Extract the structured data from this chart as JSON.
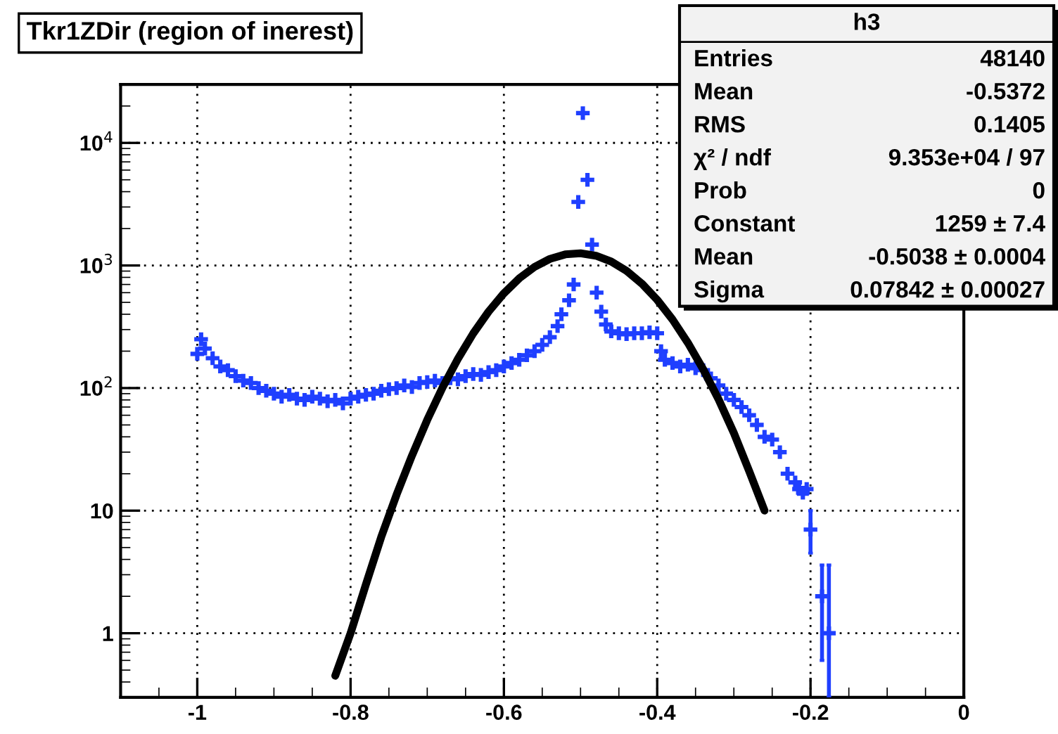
{
  "chart_data": {
    "type": "scatter",
    "title": "Tkr1ZDir (region of inerest)",
    "xlim": [
      -1.1,
      0
    ],
    "xticks": [
      -1,
      -0.8,
      -0.6,
      -0.4,
      -0.2,
      0
    ],
    "ylim": [
      0.3,
      30000
    ],
    "yticks": [
      1,
      10,
      {
        "value": 100,
        "label": "10$^{2}$"
      },
      {
        "value": 1000,
        "label": "10$^{3}$"
      },
      {
        "value": 10000,
        "label": "10$^{4}$"
      }
    ],
    "log": "y",
    "grid": true,
    "series": [
      {
        "color": "#1f3fff",
        "marker": "cross",
        "x": [
          -1.0,
          -0.995,
          -0.99,
          -0.98,
          -0.97,
          -0.96,
          -0.95,
          -0.94,
          -0.93,
          -0.92,
          -0.91,
          -0.9,
          -0.89,
          -0.88,
          -0.87,
          -0.86,
          -0.85,
          -0.84,
          -0.83,
          -0.82,
          -0.81,
          -0.8,
          -0.79,
          -0.78,
          -0.77,
          -0.76,
          -0.75,
          -0.74,
          -0.73,
          -0.72,
          -0.71,
          -0.7,
          -0.69,
          -0.68,
          -0.67,
          -0.66,
          -0.65,
          -0.64,
          -0.63,
          -0.62,
          -0.61,
          -0.6,
          -0.59,
          -0.58,
          -0.57,
          -0.56,
          -0.55,
          -0.54,
          -0.53,
          -0.525,
          -0.515,
          -0.509,
          -0.503,
          -0.497,
          -0.491,
          -0.485,
          -0.479,
          -0.473,
          -0.467,
          -0.46,
          -0.45,
          -0.44,
          -0.43,
          -0.42,
          -0.41,
          -0.4,
          -0.395,
          -0.39,
          -0.38,
          -0.37,
          -0.36,
          -0.35,
          -0.34,
          -0.33,
          -0.32,
          -0.31,
          -0.3,
          -0.29,
          -0.28,
          -0.27,
          -0.26,
          -0.25,
          -0.24,
          -0.23,
          -0.22,
          -0.215,
          -0.21,
          -0.205,
          -0.2,
          -0.185,
          -0.176
        ],
        "values": [
          190,
          250,
          210,
          175,
          150,
          140,
          125,
          115,
          110,
          100,
          95,
          90,
          85,
          88,
          82,
          80,
          85,
          82,
          78,
          80,
          75,
          82,
          85,
          88,
          90,
          95,
          98,
          100,
          105,
          102,
          110,
          112,
          115,
          110,
          120,
          118,
          125,
          130,
          128,
          135,
          140,
          150,
          160,
          170,
          185,
          200,
          225,
          260,
          320,
          400,
          520,
          700,
          3300,
          17500,
          5000,
          1480,
          600,
          420,
          330,
          290,
          280,
          275,
          280,
          280,
          285,
          280,
          200,
          170,
          160,
          150,
          155,
          145,
          140,
          120,
          105,
          90,
          80,
          70,
          60,
          50,
          40,
          38,
          30,
          20,
          17,
          15,
          14,
          15,
          7,
          2,
          1
        ],
        "errors": [
          null,
          null,
          null,
          null,
          null,
          null,
          null,
          null,
          null,
          null,
          null,
          null,
          null,
          null,
          null,
          null,
          null,
          null,
          null,
          null,
          null,
          null,
          null,
          null,
          null,
          null,
          null,
          null,
          null,
          null,
          null,
          null,
          null,
          null,
          null,
          null,
          null,
          null,
          null,
          null,
          null,
          null,
          null,
          null,
          null,
          null,
          null,
          null,
          null,
          null,
          null,
          null,
          null,
          null,
          null,
          null,
          null,
          null,
          null,
          null,
          null,
          null,
          null,
          null,
          null,
          null,
          null,
          null,
          null,
          null,
          null,
          null,
          null,
          null,
          null,
          null,
          null,
          null,
          null,
          null,
          null,
          null,
          null,
          null,
          null,
          null,
          null,
          null,
          [
            4.5,
            10
          ],
          [
            0.6,
            3.6
          ],
          [
            0.3,
            3.6
          ]
        ]
      },
      {
        "type": "line",
        "color": "#000000",
        "x": [
          -0.82,
          -0.8,
          -0.78,
          -0.76,
          -0.74,
          -0.72,
          -0.7,
          -0.68,
          -0.66,
          -0.64,
          -0.62,
          -0.6,
          -0.58,
          -0.56,
          -0.54,
          -0.52,
          -0.5,
          -0.48,
          -0.46,
          -0.44,
          -0.42,
          -0.4,
          -0.38,
          -0.36,
          -0.34,
          -0.32,
          -0.3,
          -0.28,
          -0.26
        ],
        "values": [
          0.45,
          1.0,
          2.5,
          6.1,
          13.5,
          28,
          55,
          101,
          173,
          279,
          420,
          593,
          785,
          974,
          1132,
          1232,
          1258,
          1202,
          1077,
          904,
          711,
          524,
          362,
          234,
          142,
          81,
          43,
          21,
          10
        ]
      }
    ],
    "annotations": [
      "h3",
      "Entries",
      "48140",
      "Mean",
      "-0.5372",
      "RMS",
      "0.1405",
      "χ² / ndf",
      "9.353e+04 / 97",
      "Prob",
      "0",
      "Constant",
      "1259 ± 7.4",
      "Mean",
      "-0.5038 ± 0.0004",
      "Sigma",
      "0.07842 ± 0.00027"
    ]
  }
}
